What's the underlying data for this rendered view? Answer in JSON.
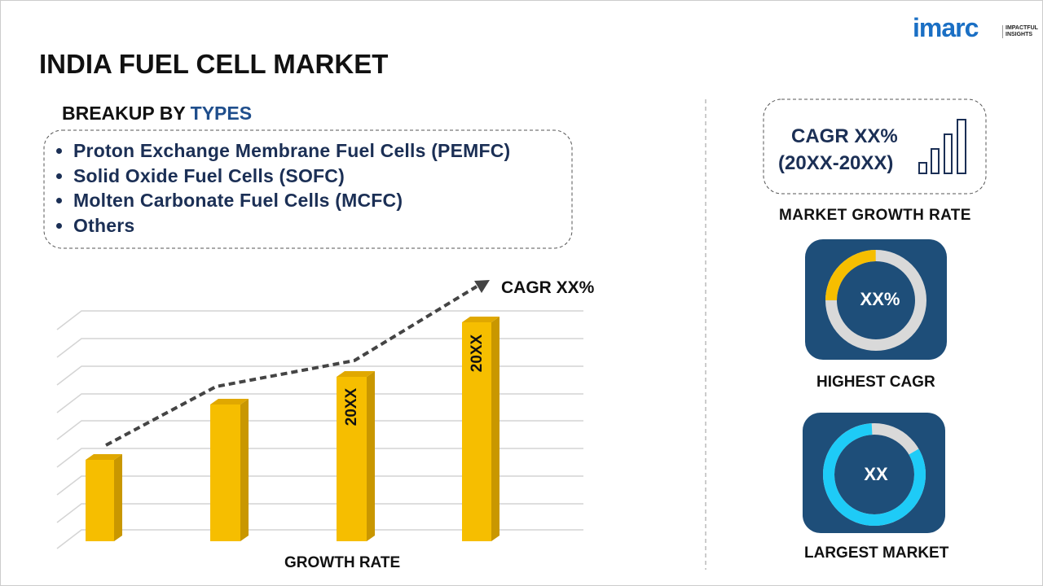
{
  "logo": {
    "brand": "imarc",
    "tagline_1": "IMPACTFUL",
    "tagline_2": "INSIGHTS"
  },
  "title": "INDIA FUEL CELL MARKET",
  "breakup": {
    "heading": "BREAKUP BY",
    "heading_highlight": "TYPES",
    "items": [
      "Proton Exchange Membrane Fuel Cells (PEMFC)",
      "Solid Oxide Fuel Cells (SOFC)",
      "Molten Carbonate Fuel Cells (MCFC)",
      "Others"
    ]
  },
  "growth_chart": {
    "trend_label": "CAGR XX%",
    "bar_labels": [
      "20XX",
      "20XX"
    ],
    "axis_label": "GROWTH RATE"
  },
  "cagr_card": {
    "line_1": "CAGR XX%",
    "line_2": "(20XX-20XX)",
    "caption": "MARKET GROWTH RATE"
  },
  "highest_cagr": {
    "value": "XX%",
    "caption": "HIGHEST CAGR"
  },
  "largest_market": {
    "value": "XX",
    "caption": "LARGEST MARKET"
  }
}
